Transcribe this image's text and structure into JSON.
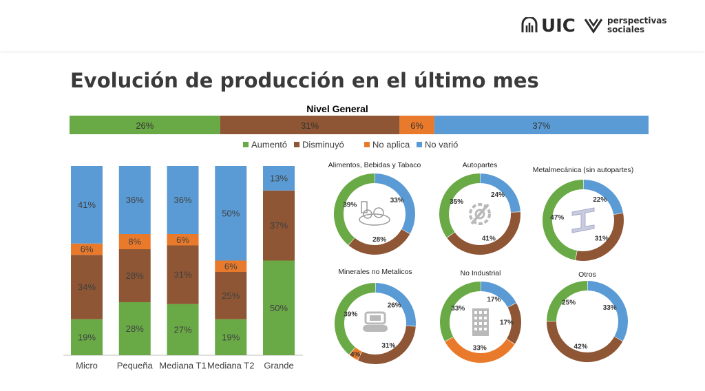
{
  "header": {
    "logo_uic": "UIC",
    "logo_ps_line1": "perspectivas",
    "logo_ps_line2": "sociales"
  },
  "title": "Evolución de producción en el último mes",
  "colors": {
    "aumento": "#6aaa46",
    "disminuyo": "#8e5634",
    "no_aplica": "#ea7a2b",
    "no_vario": "#5a9bd5"
  },
  "chart_data": [
    {
      "type": "bar",
      "orientation": "horizontal-stacked",
      "title": "Nivel General",
      "legend": [
        "Aumentó",
        "Disminuyó",
        "No aplica",
        "No varió"
      ],
      "legend_position": "bottom",
      "values": [
        26,
        31,
        6,
        37
      ],
      "labels": [
        "26%",
        "31%",
        "6%",
        "37%"
      ]
    },
    {
      "type": "bar",
      "orientation": "vertical-stacked-100",
      "categories": [
        "Micro",
        "Pequeña",
        "Mediana T1",
        "Mediana T2",
        "Grande"
      ],
      "series": [
        {
          "name": "Aumentó",
          "values": [
            19,
            28,
            27,
            19,
            50
          ]
        },
        {
          "name": "Disminuyó",
          "values": [
            34,
            28,
            31,
            25,
            37
          ]
        },
        {
          "name": "No aplica",
          "values": [
            6,
            8,
            6,
            6,
            0
          ]
        },
        {
          "name": "No varió",
          "values": [
            41,
            36,
            36,
            50,
            13
          ]
        }
      ]
    },
    {
      "type": "pie",
      "variant": "donut",
      "donuts": [
        {
          "title": "Alimentos, Bebidas y Tabaco",
          "icon": "food-basket-icon",
          "no_vario": 33,
          "disminuyo": 28,
          "no_aplica": 0,
          "aumento": 39
        },
        {
          "title": "Autopartes",
          "icon": "gear-wrench-icon",
          "no_vario": 24,
          "disminuyo": 41,
          "no_aplica": 0,
          "aumento": 35
        },
        {
          "title": "Metalmecánica (sin autopartes)",
          "icon": "steel-beam-icon",
          "no_vario": 22,
          "disminuyo": 31,
          "no_aplica": 0,
          "aumento": 47
        },
        {
          "title": "Minerales no Metalicos",
          "icon": "excavator-icon",
          "no_vario": 26,
          "disminuyo": 31,
          "no_aplica": 4,
          "aumento": 39
        },
        {
          "title": "No Industrial",
          "icon": "building-icon",
          "no_vario": 17,
          "disminuyo": 17,
          "no_aplica": 33,
          "aumento": 33
        },
        {
          "title": "Otros",
          "icon": "",
          "no_vario": 33,
          "disminuyo": 42,
          "no_aplica": 0,
          "aumento": 25
        }
      ]
    }
  ]
}
